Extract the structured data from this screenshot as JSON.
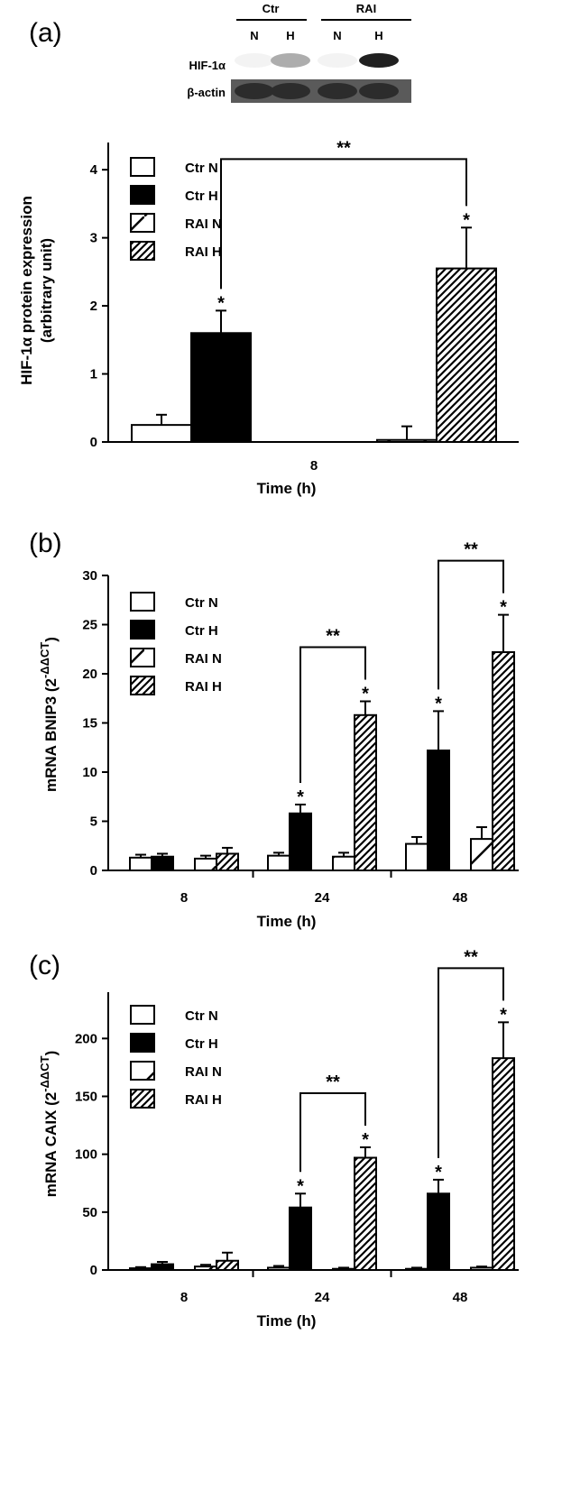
{
  "colors": {
    "ink": "#000000",
    "paper": "#ffffff",
    "blot_bg": "#3a3a3a"
  },
  "panel_a": {
    "label": "(a)",
    "blot": {
      "group_labels": [
        "Ctr",
        "RAI"
      ],
      "lane_labels": [
        "N",
        "H",
        "N",
        "H"
      ],
      "rows": [
        {
          "label": "HIF-1α",
          "intensity": [
            0.05,
            0.35,
            0.05,
            0.95
          ]
        },
        {
          "label": "β-actin",
          "intensity": [
            0.9,
            0.9,
            0.9,
            0.9
          ]
        }
      ]
    }
  },
  "panel_b": {
    "label": "(b)"
  },
  "panel_c": {
    "label": "(c)"
  },
  "chart_data": [
    {
      "type": "bar",
      "panel": "(a)",
      "categories": [
        "8"
      ],
      "xlabel": "Time (h)",
      "ylabel_line1": "HIF-1α protein expression",
      "ylabel_line2": "(arbitrary unit)",
      "ylim": [
        0,
        4.4
      ],
      "yticks": [
        0,
        1,
        2,
        3,
        4
      ],
      "legend": [
        "Ctr N",
        "Ctr H",
        "RAI N",
        "RAI H"
      ],
      "legend_placement": "top-left",
      "series": [
        {
          "name": "Ctr N",
          "values": [
            0.25
          ],
          "errors": [
            0.15
          ],
          "star": [
            false
          ]
        },
        {
          "name": "Ctr H",
          "values": [
            1.6
          ],
          "errors": [
            0.33
          ],
          "star": [
            true
          ]
        },
        {
          "name": "RAI N",
          "values": [
            0.03
          ],
          "errors": [
            0.2
          ],
          "star": [
            false
          ]
        },
        {
          "name": "RAI H",
          "values": [
            2.55
          ],
          "errors": [
            0.6
          ],
          "star": [
            true
          ]
        }
      ],
      "brackets": [
        {
          "category": 0,
          "from": "Ctr H",
          "to": "RAI H",
          "label": "**"
        }
      ]
    },
    {
      "type": "bar",
      "panel": "(b)",
      "categories": [
        "8",
        "24",
        "48"
      ],
      "xlabel": "Time (h)",
      "ylabel": "mRNA BNIP3 (2",
      "ylabel_sup": "-ΔΔCT",
      "ylabel_end": ")",
      "ylim": [
        0,
        30
      ],
      "yticks": [
        0,
        5,
        10,
        15,
        20,
        25,
        30
      ],
      "legend": [
        "Ctr N",
        "Ctr H",
        "RAI N",
        "RAI H"
      ],
      "legend_placement": "top-left",
      "series": [
        {
          "name": "Ctr N",
          "values": [
            1.3,
            1.5,
            2.7
          ],
          "errors": [
            0.3,
            0.3,
            0.7
          ],
          "star": [
            false,
            false,
            false
          ]
        },
        {
          "name": "Ctr H",
          "values": [
            1.4,
            5.8,
            12.2
          ],
          "errors": [
            0.3,
            0.9,
            4.0
          ],
          "star": [
            false,
            true,
            true
          ]
        },
        {
          "name": "RAI N",
          "values": [
            1.2,
            1.4,
            3.2
          ],
          "errors": [
            0.3,
            0.4,
            1.2
          ],
          "star": [
            false,
            false,
            false
          ]
        },
        {
          "name": "RAI H",
          "values": [
            1.7,
            15.8,
            22.2
          ],
          "errors": [
            0.6,
            1.4,
            3.8
          ],
          "star": [
            false,
            true,
            true
          ]
        }
      ],
      "brackets": [
        {
          "category": 1,
          "from": "Ctr H",
          "to": "RAI H",
          "label": "**"
        },
        {
          "category": 2,
          "from": "Ctr H",
          "to": "RAI H",
          "label": "**"
        }
      ]
    },
    {
      "type": "bar",
      "panel": "(c)",
      "categories": [
        "8",
        "24",
        "48"
      ],
      "xlabel": "Time (h)",
      "ylabel": "mRNA CAIX (2",
      "ylabel_sup": "-ΔΔCT",
      "ylabel_end": ")",
      "ylim": [
        0,
        240
      ],
      "yticks": [
        0,
        50,
        100,
        150,
        200
      ],
      "legend": [
        "Ctr N",
        "Ctr H",
        "RAI N",
        "RAI H"
      ],
      "legend_placement": "top-left",
      "series": [
        {
          "name": "Ctr N",
          "values": [
            1.5,
            2,
            1
          ],
          "errors": [
            1,
            1.5,
            1
          ],
          "star": [
            false,
            false,
            false
          ]
        },
        {
          "name": "Ctr H",
          "values": [
            5,
            54,
            66
          ],
          "errors": [
            2,
            12,
            12
          ],
          "star": [
            false,
            true,
            true
          ]
        },
        {
          "name": "RAI N",
          "values": [
            3,
            1,
            2
          ],
          "errors": [
            1.5,
            1,
            1
          ],
          "star": [
            false,
            false,
            false
          ]
        },
        {
          "name": "RAI H",
          "values": [
            8,
            97,
            183
          ],
          "errors": [
            7,
            9,
            31
          ],
          "star": [
            false,
            true,
            true
          ]
        }
      ],
      "brackets": [
        {
          "category": 1,
          "from": "Ctr H",
          "to": "RAI H",
          "label": "**"
        },
        {
          "category": 2,
          "from": "Ctr H",
          "to": "RAI H",
          "label": "**"
        }
      ]
    }
  ]
}
